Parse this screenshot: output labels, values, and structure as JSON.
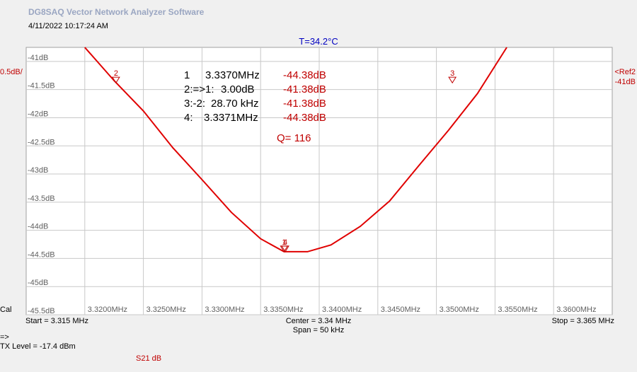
{
  "app": {
    "title": "DG8SAQ Vector Network Analyzer Software",
    "datetime": "4/11/2022   10:17:24 AM",
    "temperature": "T=34.2°C"
  },
  "left_panel": {
    "scale": "0.5dB/",
    "cal": "Cal"
  },
  "right_panel": {
    "ref_name": "<Ref2",
    "ref_value": "-41dB"
  },
  "footer": {
    "start": "Start = 3.315 MHz",
    "center": "Center = 3.34 MHz",
    "span": "Span = 50 kHz",
    "stop": "Stop = 3.365 MHz",
    "arrow": "=>",
    "tx_level": "TX Level = -17.4 dBm",
    "trace": "S21  dB"
  },
  "markers": {
    "rows": [
      {
        "id": "1",
        "freq": "3.3370MHz",
        "value": "-44.38dB"
      },
      {
        "id": "2:=>1:",
        "freq": "3.00dB",
        "value": "-41.38dB"
      },
      {
        "id": "3:-2:",
        "freq": "28.70 kHz",
        "value": "-41.38dB"
      },
      {
        "id": "4:",
        "freq": "3.3371MHz",
        "value": "-44.38dB"
      }
    ],
    "q": "Q= 116",
    "points": [
      {
        "label": "1",
        "x": 3.337,
        "y": -44.38
      },
      {
        "label": "2",
        "x": 3.32266,
        "y": -41.38
      },
      {
        "label": "3",
        "x": 3.35136,
        "y": -41.38
      },
      {
        "label": "4",
        "x": 3.3371,
        "y": -44.38
      }
    ]
  },
  "colors": {
    "trace": "#e00000",
    "marker_text": "#c00000",
    "grid": "#c8c8c8",
    "plot_bg": "#ffffff",
    "temperature": "#0000c0"
  },
  "chart_data": {
    "type": "line",
    "title": "",
    "xlabel": "",
    "ylabel": "",
    "xlim": [
      3.315,
      3.365
    ],
    "ylim": [
      -45.5,
      -40.75
    ],
    "grid": true,
    "x_tick_labels": [
      "3.3200MHz",
      "3.3250MHz",
      "3.3300MHz",
      "3.3350MHz",
      "3.3400MHz",
      "3.3450MHz",
      "3.3500MHz",
      "3.3550MHz",
      "3.3600MHz"
    ],
    "x_ticks": [
      3.32,
      3.325,
      3.33,
      3.335,
      3.34,
      3.345,
      3.35,
      3.355,
      3.36
    ],
    "y_tick_labels": [
      "-41dB",
      "-41.5dB",
      "-42dB",
      "-42.5dB",
      "-43dB",
      "-43.5dB",
      "-44dB",
      "-44.5dB",
      "-45dB",
      "-45.5dB"
    ],
    "y_ticks": [
      -41,
      -41.5,
      -42,
      -42.5,
      -43,
      -43.5,
      -44,
      -44.5,
      -45,
      -45.5
    ],
    "series": [
      {
        "name": "S21  dB",
        "x": [
          3.32,
          3.3225,
          3.325,
          3.3275,
          3.33,
          3.3325,
          3.335,
          3.337,
          3.339,
          3.341,
          3.3435,
          3.346,
          3.3485,
          3.351,
          3.3535,
          3.356
        ],
        "y": [
          -40.69,
          -41.34,
          -41.88,
          -42.53,
          -43.1,
          -43.68,
          -44.15,
          -44.38,
          -44.38,
          -44.26,
          -43.93,
          -43.48,
          -42.85,
          -42.23,
          -41.57,
          -40.72
        ]
      }
    ]
  }
}
